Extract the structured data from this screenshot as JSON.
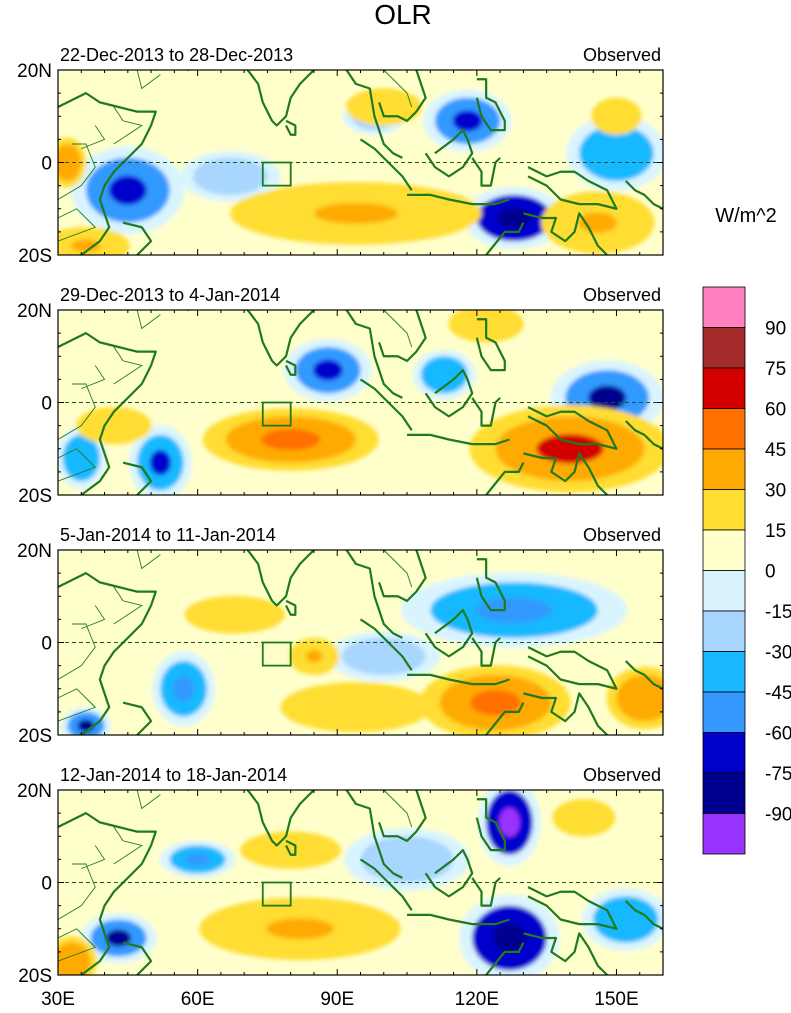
{
  "chart_data": {
    "type": "heatmap",
    "title": "OLR",
    "units": "W/m^2",
    "x_ticks": [
      "30E",
      "60E",
      "90E",
      "120E",
      "150E"
    ],
    "x_values": [
      30,
      60,
      90,
      120,
      150
    ],
    "xlim": [
      30,
      160
    ],
    "y_ticks": [
      "20N",
      "0",
      "20S"
    ],
    "y_values": [
      20,
      0,
      -20
    ],
    "ylim": [
      -20,
      20
    ],
    "colorbar": {
      "labels": [
        "90",
        "75",
        "60",
        "45",
        "30",
        "15",
        "0",
        "-15",
        "-30",
        "-45",
        "-60",
        "-75",
        "-90"
      ],
      "colors": [
        "#ff7fc0",
        "#a52a2a",
        "#d40000",
        "#ff7000",
        "#ffaa00",
        "#ffdd33",
        "#ffffcc",
        "#d9f4ff",
        "#a8d6ff",
        "#19b8ff",
        "#3399ff",
        "#0000cc",
        "#000090",
        "#9933ff"
      ]
    },
    "highlight_box": {
      "lon": [
        74,
        80
      ],
      "lat": [
        -5,
        0
      ]
    },
    "panels": [
      {
        "period": "22-Dec-2013 to 28-Dec-2013",
        "label": "Observed",
        "anomalies": [
          {
            "lon": 45,
            "lat": -6,
            "rx": 9,
            "ry": 7,
            "level": "-45",
            "core": "-60"
          },
          {
            "lon": 67,
            "lat": -3,
            "rx": 8,
            "ry": 4,
            "level": "-15",
            "core": null
          },
          {
            "lon": 98,
            "lat": 10,
            "rx": 5,
            "ry": 3,
            "level": "-15",
            "core": null
          },
          {
            "lon": 118,
            "lat": 9,
            "rx": 7,
            "ry": 5,
            "level": "-45",
            "core": "-60"
          },
          {
            "lon": 128,
            "lat": -12,
            "rx": 8,
            "ry": 5,
            "level": "-60",
            "core": "-75"
          },
          {
            "lon": 150,
            "lat": 2,
            "rx": 8,
            "ry": 6,
            "level": "-30",
            "core": null
          },
          {
            "lon": 94,
            "lat": -11,
            "rx": 20,
            "ry": 5,
            "level": "15",
            "core": "30"
          },
          {
            "lon": 146,
            "lat": -13,
            "rx": 9,
            "ry": 5,
            "level": "15",
            "core": "30"
          },
          {
            "lon": 32,
            "lat": 0,
            "rx": 3,
            "ry": 4,
            "level": "30",
            "core": null
          },
          {
            "lon": 36,
            "lat": -18,
            "rx": 7,
            "ry": 3,
            "level": "15",
            "core": "30"
          },
          {
            "lon": 150,
            "lat": 10,
            "rx": 4,
            "ry": 3,
            "level": "15",
            "core": null
          },
          {
            "lon": 100,
            "lat": 12,
            "rx": 6,
            "ry": 3,
            "level": "15",
            "core": null
          }
        ]
      },
      {
        "period": "29-Dec-2013 to 4-Jan-2014",
        "label": "Observed",
        "anomalies": [
          {
            "lon": 88,
            "lat": 7,
            "rx": 7,
            "ry": 5,
            "level": "-45",
            "core": "-60"
          },
          {
            "lon": 113,
            "lat": 6,
            "rx": 5,
            "ry": 4,
            "level": "-30",
            "core": null
          },
          {
            "lon": 148,
            "lat": 1,
            "rx": 9,
            "ry": 6,
            "level": "-45",
            "core": "-75"
          },
          {
            "lon": 52,
            "lat": -13,
            "rx": 5,
            "ry": 6,
            "level": "-30",
            "core": "-60"
          },
          {
            "lon": 35,
            "lat": -12,
            "rx": 4,
            "ry": 5,
            "level": "-30",
            "core": null
          },
          {
            "lon": 80,
            "lat": -8,
            "rx": 14,
            "ry": 5,
            "level": "30",
            "core": "45"
          },
          {
            "lon": 140,
            "lat": -10,
            "rx": 16,
            "ry": 7,
            "level": "30",
            "core": "60"
          },
          {
            "lon": 122,
            "lat": 17,
            "rx": 6,
            "ry": 3,
            "level": "15",
            "core": null
          },
          {
            "lon": 42,
            "lat": -5,
            "rx": 6,
            "ry": 3,
            "level": "15",
            "core": null
          }
        ]
      },
      {
        "period": "5-Jan-2014 to 11-Jan-2014",
        "label": "Observed",
        "anomalies": [
          {
            "lon": 128,
            "lat": 7,
            "rx": 18,
            "ry": 6,
            "level": "-30",
            "core": "-45"
          },
          {
            "lon": 57,
            "lat": -10,
            "rx": 5,
            "ry": 6,
            "level": "-30",
            "core": "-45"
          },
          {
            "lon": 36,
            "lat": -18,
            "rx": 4,
            "ry": 3,
            "level": "-45",
            "core": "-75"
          },
          {
            "lon": 100,
            "lat": -3,
            "rx": 9,
            "ry": 4,
            "level": "-15",
            "core": null
          },
          {
            "lon": 68,
            "lat": 6,
            "rx": 8,
            "ry": 3,
            "level": "15",
            "core": null
          },
          {
            "lon": 85,
            "lat": -3,
            "rx": 4,
            "ry": 3,
            "level": "15",
            "core": "30"
          },
          {
            "lon": 124,
            "lat": -13,
            "rx": 12,
            "ry": 6,
            "level": "30",
            "core": "45"
          },
          {
            "lon": 156,
            "lat": -12,
            "rx": 6,
            "ry": 5,
            "level": "30",
            "core": null
          },
          {
            "lon": 94,
            "lat": -14,
            "rx": 12,
            "ry": 4,
            "level": "15",
            "core": null
          }
        ]
      },
      {
        "period": "12-Jan-2014 to 18-Jan-2014",
        "label": "Observed",
        "anomalies": [
          {
            "lon": 127,
            "lat": 13,
            "rx": 5,
            "ry": 7,
            "level": "-60",
            "core": "-90"
          },
          {
            "lon": 127,
            "lat": -12,
            "rx": 8,
            "ry": 7,
            "level": "-60",
            "core": "-75"
          },
          {
            "lon": 43,
            "lat": -12,
            "rx": 6,
            "ry": 4,
            "level": "-45",
            "core": "-75"
          },
          {
            "lon": 60,
            "lat": 5,
            "rx": 6,
            "ry": 3,
            "level": "-30",
            "core": "-45"
          },
          {
            "lon": 105,
            "lat": 5,
            "rx": 10,
            "ry": 5,
            "level": "-15",
            "core": null
          },
          {
            "lon": 152,
            "lat": -8,
            "rx": 7,
            "ry": 5,
            "level": "-30",
            "core": null
          },
          {
            "lon": 82,
            "lat": -10,
            "rx": 16,
            "ry": 5,
            "level": "15",
            "core": "30"
          },
          {
            "lon": 80,
            "lat": 7,
            "rx": 8,
            "ry": 3,
            "level": "15",
            "core": null
          },
          {
            "lon": 33,
            "lat": -17,
            "rx": 4,
            "ry": 4,
            "level": "30",
            "core": null
          },
          {
            "lon": 143,
            "lat": 14,
            "rx": 5,
            "ry": 3,
            "level": "15",
            "core": null
          }
        ]
      }
    ]
  }
}
